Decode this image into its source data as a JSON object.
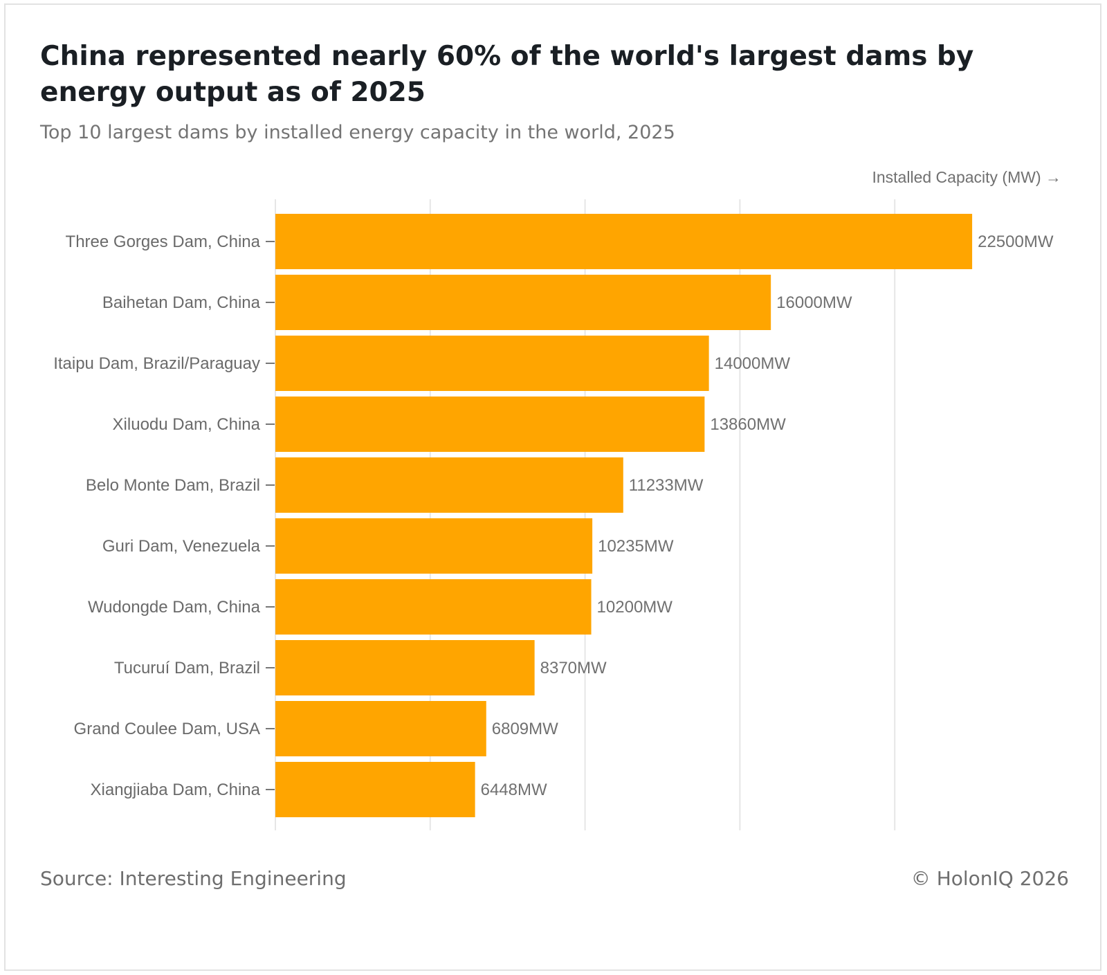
{
  "chart_data": {
    "type": "bar",
    "orientation": "horizontal",
    "title": "China represented nearly 60% of the world's largest dams by energy output as of 2025",
    "subtitle": "Top 10 largest dams by installed energy capacity in the world, 2025",
    "xlabel": "Installed Capacity (MW) →",
    "ylabel": "",
    "value_suffix": "MW",
    "categories": [
      "Three Gorges Dam, China",
      "Baihetan Dam, China",
      "Itaipu Dam, Brazil/Paraguay",
      "Xiluodu Dam, China",
      "Belo Monte Dam, Brazil",
      "Guri Dam, Venezuela",
      "Wudongde Dam, China",
      "Tucuruí Dam, Brazil",
      "Grand Coulee Dam, USA",
      "Xiangjiaba Dam, China"
    ],
    "values": [
      22500,
      16000,
      14000,
      13860,
      11233,
      10235,
      10200,
      8370,
      6809,
      6448
    ],
    "xlim": [
      0,
      25000
    ],
    "grid_step": 5000,
    "grid": true,
    "bar_color": "#FFA500"
  },
  "footer": {
    "source": "Source: Interesting Engineering",
    "copyright": "© HolonIQ 2026"
  }
}
